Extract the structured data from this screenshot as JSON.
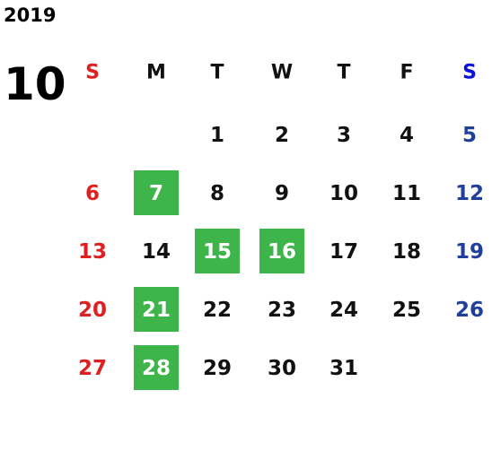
{
  "year": "2019",
  "month": "10",
  "weekdays": [
    "S",
    "M",
    "T",
    "W",
    "T",
    "F",
    "S"
  ],
  "weeks": [
    [
      null,
      null,
      {
        "day": 1
      },
      {
        "day": 2
      },
      {
        "day": 3
      },
      {
        "day": 4
      },
      {
        "day": 5
      }
    ],
    [
      {
        "day": 6
      },
      {
        "day": 7,
        "highlight": true
      },
      {
        "day": 8
      },
      {
        "day": 9
      },
      {
        "day": 10
      },
      {
        "day": 11
      },
      {
        "day": 12
      }
    ],
    [
      {
        "day": 13
      },
      {
        "day": 14
      },
      {
        "day": 15,
        "highlight": true
      },
      {
        "day": 16,
        "highlight": true
      },
      {
        "day": 17
      },
      {
        "day": 18
      },
      {
        "day": 19
      }
    ],
    [
      {
        "day": 20
      },
      {
        "day": 21,
        "highlight": true
      },
      {
        "day": 22
      },
      {
        "day": 23
      },
      {
        "day": 24
      },
      {
        "day": 25
      },
      {
        "day": 26
      }
    ],
    [
      {
        "day": 27
      },
      {
        "day": 28,
        "highlight": true
      },
      {
        "day": 29
      },
      {
        "day": 30
      },
      {
        "day": 31
      },
      null,
      null
    ]
  ]
}
